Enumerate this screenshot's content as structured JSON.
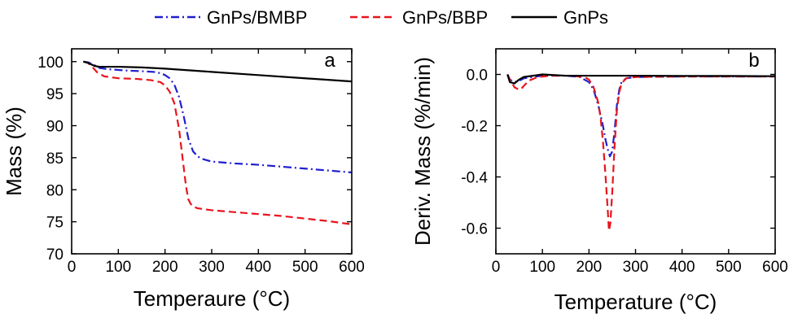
{
  "legend": {
    "items": [
      {
        "label": "GnPs/BMBP",
        "color": "#1f1fd0",
        "dash": "dashdot"
      },
      {
        "label": "GnPs/BBP",
        "color": "#e8141c",
        "dash": "dashed"
      },
      {
        "label": "GnPs",
        "color": "#000000",
        "dash": "solid"
      }
    ]
  },
  "chart_data": [
    {
      "type": "line",
      "panel": "a",
      "xlabel": "Temperaure (°C)",
      "ylabel": "Mass (%)",
      "xlim": [
        0,
        600
      ],
      "ylim": [
        70,
        102
      ],
      "xticks": [
        0,
        100,
        200,
        300,
        400,
        500,
        600
      ],
      "yticks": [
        70,
        75,
        80,
        85,
        90,
        95,
        100
      ],
      "grid": false,
      "series": [
        {
          "name": "GnPs/BMBP",
          "color": "#1f1fd0",
          "dash": "dashdot",
          "x": [
            25,
            35,
            50,
            60,
            80,
            120,
            150,
            175,
            190,
            200,
            210,
            220,
            230,
            240,
            250,
            260,
            270,
            280,
            300,
            350,
            400,
            450,
            500,
            550,
            600
          ],
          "y": [
            100,
            99.9,
            99.4,
            99.0,
            98.8,
            98.6,
            98.5,
            98.4,
            98.2,
            97.9,
            97.4,
            96.4,
            94.5,
            91.5,
            88.0,
            86.0,
            85.2,
            84.8,
            84.4,
            84.1,
            83.9,
            83.6,
            83.3,
            83.0,
            82.7
          ]
        },
        {
          "name": "GnPs/BBP",
          "color": "#e8141c",
          "dash": "dashed",
          "x": [
            25,
            35,
            45,
            55,
            70,
            100,
            140,
            170,
            190,
            200,
            210,
            220,
            230,
            235,
            240,
            245,
            250,
            255,
            260,
            270,
            300,
            350,
            400,
            450,
            500,
            550,
            600
          ],
          "y": [
            100,
            99.8,
            99.1,
            98.3,
            97.7,
            97.4,
            97.3,
            97.1,
            96.8,
            96.3,
            95.3,
            93.5,
            89.5,
            86.5,
            83.5,
            80.5,
            78.5,
            77.8,
            77.4,
            77.1,
            76.8,
            76.5,
            76.2,
            75.9,
            75.5,
            75.1,
            74.6
          ]
        },
        {
          "name": "GnPs",
          "color": "#000000",
          "dash": "solid",
          "x": [
            25,
            35,
            50,
            60,
            80,
            100,
            150,
            200,
            300,
            400,
            500,
            600
          ],
          "y": [
            100,
            99.8,
            99.3,
            99.2,
            99.2,
            99.2,
            99.1,
            98.9,
            98.4,
            97.9,
            97.4,
            96.9
          ]
        }
      ],
      "annotations": [
        "a"
      ]
    },
    {
      "type": "line",
      "panel": "b",
      "xlabel": "Temperature (°C)",
      "ylabel": "Deriv. Mass (%/min)",
      "xlim": [
        0,
        600
      ],
      "ylim": [
        -0.7,
        0.1
      ],
      "xticks": [
        0,
        100,
        200,
        300,
        400,
        500,
        600
      ],
      "yticks": [
        -0.6,
        -0.4,
        -0.2,
        0.0
      ],
      "ytick_labels": [
        "-0.6",
        "-0.4",
        "-0.2",
        "0.0"
      ],
      "grid": false,
      "series": [
        {
          "name": "GnPs/BMBP",
          "color": "#1f1fd0",
          "dash": "dashdot",
          "x": [
            25,
            30,
            40,
            50,
            60,
            80,
            100,
            150,
            180,
            200,
            210,
            220,
            230,
            235,
            240,
            245,
            250,
            255,
            260,
            265,
            270,
            280,
            300,
            400,
            500,
            600
          ],
          "y": [
            0,
            -0.02,
            -0.03,
            -0.025,
            -0.015,
            -0.01,
            -0.005,
            -0.005,
            -0.01,
            -0.03,
            -0.06,
            -0.12,
            -0.2,
            -0.25,
            -0.29,
            -0.32,
            -0.3,
            -0.22,
            -0.12,
            -0.06,
            -0.03,
            -0.015,
            -0.01,
            -0.008,
            -0.008,
            -0.008
          ]
        },
        {
          "name": "GnPs/BBP",
          "color": "#e8141c",
          "dash": "dashed",
          "x": [
            25,
            30,
            40,
            50,
            55,
            60,
            70,
            90,
            120,
            160,
            190,
            200,
            210,
            220,
            225,
            230,
            235,
            240,
            243,
            246,
            250,
            255,
            260,
            265,
            270,
            280,
            300,
            400,
            500,
            600
          ],
          "y": [
            0,
            -0.02,
            -0.05,
            -0.06,
            -0.055,
            -0.045,
            -0.025,
            -0.01,
            -0.005,
            -0.005,
            -0.01,
            -0.02,
            -0.05,
            -0.11,
            -0.17,
            -0.26,
            -0.38,
            -0.52,
            -0.61,
            -0.58,
            -0.46,
            -0.28,
            -0.14,
            -0.07,
            -0.035,
            -0.015,
            -0.01,
            -0.008,
            -0.008,
            -0.008
          ]
        },
        {
          "name": "GnPs",
          "color": "#000000",
          "dash": "solid",
          "x": [
            25,
            30,
            40,
            50,
            60,
            80,
            100,
            150,
            200,
            300,
            400,
            500,
            600
          ],
          "y": [
            0,
            -0.03,
            -0.035,
            -0.02,
            -0.01,
            -0.005,
            0.0,
            -0.005,
            -0.005,
            -0.005,
            -0.006,
            -0.006,
            -0.007
          ]
        }
      ],
      "annotations": [
        "b"
      ]
    }
  ]
}
